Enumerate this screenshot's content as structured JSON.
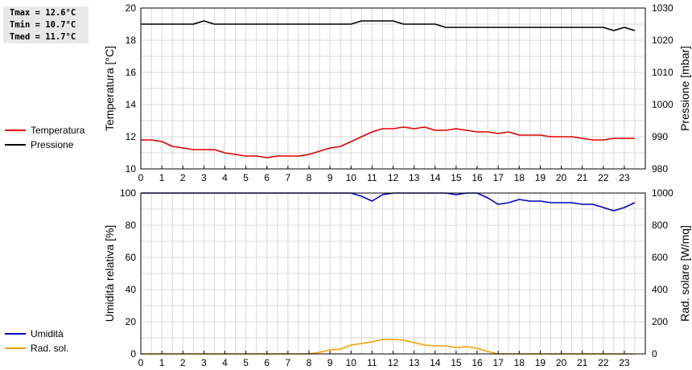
{
  "stats": {
    "tmax": "Tmax = 12.6°C",
    "tmin": "Tmin = 10.7°C",
    "tmed": "Tmed = 11.7°C"
  },
  "chart_data": [
    {
      "type": "line",
      "ylabel": "Temperatura [°C]",
      "y2label": "Pressione [mbar]",
      "ylim": [
        10,
        20
      ],
      "y2lim": [
        980,
        1030
      ],
      "yticks": [
        "10",
        "12",
        "14",
        "16",
        "18",
        "20"
      ],
      "y2ticks": [
        "980",
        "990",
        "1000",
        "1010",
        "1020",
        "1030"
      ],
      "xlim": [
        0,
        24
      ],
      "xticks": [
        "0",
        "1",
        "2",
        "3",
        "4",
        "5",
        "6",
        "7",
        "8",
        "9",
        "10",
        "11",
        "12",
        "13",
        "14",
        "15",
        "16",
        "17",
        "18",
        "19",
        "20",
        "21",
        "22",
        "23"
      ],
      "grid": true,
      "legend_placement": "left",
      "series": [
        {
          "name": "Temperatura",
          "axis": "left",
          "color": "#e00000",
          "x": [
            0,
            0.5,
            1,
            1.5,
            2,
            2.5,
            3,
            3.5,
            4,
            4.5,
            5,
            5.5,
            6,
            6.5,
            7,
            7.5,
            8,
            8.5,
            9,
            9.5,
            10,
            10.5,
            11,
            11.5,
            12,
            12.5,
            13,
            13.5,
            14,
            14.5,
            15,
            15.5,
            16,
            16.5,
            17,
            17.5,
            18,
            18.5,
            19,
            19.5,
            20,
            20.5,
            21,
            21.5,
            22,
            22.5,
            23,
            23.5
          ],
          "y": [
            11.8,
            11.8,
            11.7,
            11.4,
            11.3,
            11.2,
            11.2,
            11.2,
            11.0,
            10.9,
            10.8,
            10.8,
            10.7,
            10.8,
            10.8,
            10.8,
            10.9,
            11.1,
            11.3,
            11.4,
            11.7,
            12.0,
            12.3,
            12.5,
            12.5,
            12.6,
            12.5,
            12.6,
            12.4,
            12.4,
            12.5,
            12.4,
            12.3,
            12.3,
            12.2,
            12.3,
            12.1,
            12.1,
            12.1,
            12.0,
            12.0,
            12.0,
            11.9,
            11.8,
            11.8,
            11.9,
            11.9,
            11.9
          ]
        },
        {
          "name": "Pressione",
          "axis": "right",
          "color": "#000000",
          "x": [
            0,
            0.5,
            1,
            1.5,
            2,
            2.5,
            2.75,
            3,
            3.25,
            3.5,
            4,
            5,
            6,
            7,
            8,
            9,
            10,
            10.5,
            11,
            11.5,
            12,
            12.5,
            13,
            13.5,
            14,
            14.5,
            15,
            16,
            17,
            18,
            19,
            20,
            21,
            21.5,
            22,
            22.5,
            23,
            23.5
          ],
          "y": [
            1025,
            1025,
            1025,
            1025,
            1025,
            1025,
            1025.5,
            1026,
            1025.5,
            1025,
            1025,
            1025,
            1025,
            1025,
            1025,
            1025,
            1025,
            1026,
            1026,
            1026,
            1026,
            1025,
            1025,
            1025,
            1025,
            1024,
            1024,
            1024,
            1024,
            1024,
            1024,
            1024,
            1024,
            1024,
            1024,
            1023,
            1024,
            1023
          ]
        }
      ]
    },
    {
      "type": "line",
      "ylabel": "Umidità relativa [%]",
      "y2label": "Rad. solare [W/mq]",
      "ylim": [
        0,
        100
      ],
      "y2lim": [
        0,
        1000
      ],
      "yticks": [
        "0",
        "20",
        "40",
        "60",
        "80",
        "100"
      ],
      "y2ticks": [
        "0",
        "200",
        "400",
        "600",
        "800",
        "1000"
      ],
      "xlim": [
        0,
        24
      ],
      "xticks": [
        "0",
        "1",
        "2",
        "3",
        "4",
        "5",
        "6",
        "7",
        "8",
        "9",
        "10",
        "11",
        "12",
        "13",
        "14",
        "15",
        "16",
        "17",
        "18",
        "19",
        "20",
        "21",
        "22",
        "23"
      ],
      "grid": true,
      "legend_placement": "left",
      "series": [
        {
          "name": "Umidità",
          "axis": "left",
          "color": "#0000c0",
          "x": [
            0,
            1,
            2,
            3,
            4,
            5,
            6,
            7,
            8,
            9,
            9.5,
            10,
            10.5,
            11,
            11.5,
            12,
            12.5,
            13,
            13.5,
            14,
            14.5,
            15,
            15.5,
            16,
            16.5,
            17,
            17.5,
            18,
            18.5,
            19,
            19.5,
            20,
            20.5,
            21,
            21.5,
            22,
            22.5,
            23,
            23.5
          ],
          "y": [
            100,
            100,
            100,
            100,
            100,
            100,
            100,
            100,
            100,
            100,
            100,
            100,
            98,
            95,
            99,
            100,
            100,
            100,
            100,
            100,
            100,
            99,
            100,
            100,
            97,
            93,
            94,
            96,
            95,
            95,
            94,
            94,
            94,
            93,
            93,
            91,
            89,
            91,
            94
          ]
        },
        {
          "name": "Rad. sol.",
          "axis": "right",
          "color": "#f0a000",
          "x": [
            0,
            1,
            2,
            3,
            4,
            5,
            6,
            7,
            8,
            8.5,
            9,
            9.5,
            10,
            10.5,
            11,
            11.5,
            12,
            12.5,
            13,
            13.5,
            14,
            14.5,
            15,
            15.5,
            16,
            16.5,
            17,
            18,
            19,
            20,
            21,
            22,
            23,
            23.5
          ],
          "y": [
            0,
            0,
            0,
            0,
            0,
            0,
            0,
            0,
            0,
            10,
            25,
            30,
            55,
            65,
            75,
            90,
            90,
            85,
            70,
            55,
            50,
            50,
            40,
            45,
            35,
            15,
            0,
            0,
            0,
            0,
            0,
            0,
            0,
            0
          ]
        }
      ]
    }
  ]
}
